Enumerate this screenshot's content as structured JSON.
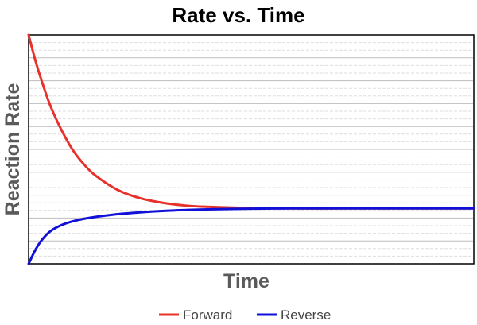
{
  "chart_data": {
    "type": "line",
    "title": "Rate vs. Time",
    "xlabel": "Time",
    "ylabel": "Reaction Rate",
    "grid": true,
    "legend": "bottom",
    "xlim": [
      0,
      10
    ],
    "ylim": [
      0,
      10
    ],
    "series": [
      {
        "name": "Forward",
        "color": "#e8312a",
        "x": [
          0,
          0.15,
          0.3,
          0.5,
          0.75,
          1.0,
          1.25,
          1.5,
          2.0,
          2.5,
          3.0,
          3.5,
          4.0,
          5.0,
          6.0,
          7.0,
          8.0,
          9.0,
          10.0
        ],
        "y": [
          10.0,
          8.9,
          7.95,
          6.85,
          5.8,
          4.95,
          4.33,
          3.86,
          3.23,
          2.87,
          2.67,
          2.55,
          2.49,
          2.44,
          2.42,
          2.42,
          2.42,
          2.42,
          2.42
        ]
      },
      {
        "name": "Reverse",
        "color": "#1010d8",
        "x": [
          0,
          0.15,
          0.3,
          0.5,
          0.75,
          1.0,
          1.25,
          1.5,
          2.0,
          2.5,
          3.0,
          3.5,
          4.0,
          5.0,
          6.0,
          7.0,
          8.0,
          9.0,
          10.0
        ],
        "y": [
          0.0,
          0.6,
          1.05,
          1.44,
          1.7,
          1.86,
          1.97,
          2.05,
          2.17,
          2.25,
          2.31,
          2.35,
          2.38,
          2.41,
          2.42,
          2.42,
          2.42,
          2.42,
          2.42
        ]
      }
    ]
  }
}
